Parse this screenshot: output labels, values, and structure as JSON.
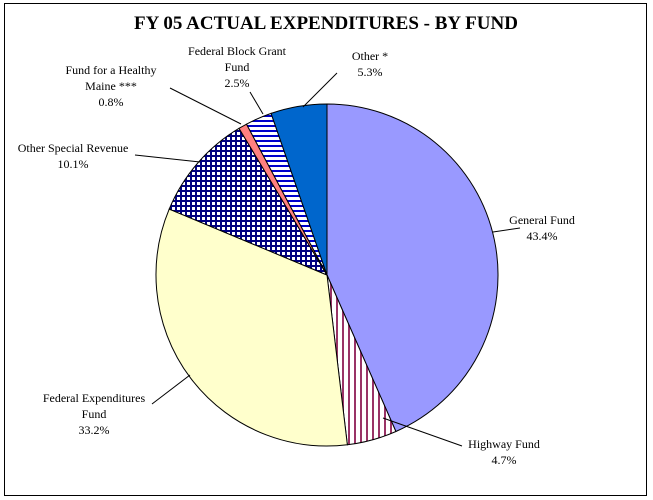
{
  "chart_data": {
    "type": "pie",
    "title": "FY 05 ACTUAL EXPENDITURES - BY FUND",
    "slices": [
      {
        "label_lines": [
          "General Fund"
        ],
        "value_label": "43.4%",
        "value": 43.4,
        "fill": "#9999ff",
        "pattern": "solid"
      },
      {
        "label_lines": [
          "Highway Fund"
        ],
        "value_label": "4.7%",
        "value": 4.7,
        "fill": "#993366",
        "pattern": "vertical-stripes"
      },
      {
        "label_lines": [
          "Federal Expenditures",
          "Fund"
        ],
        "value_label": "33.2%",
        "value": 33.2,
        "fill": "#ffffcc",
        "pattern": "solid"
      },
      {
        "label_lines": [
          "Other Special Revenue"
        ],
        "value_label": "10.1%",
        "value": 10.1,
        "fill": "#000080",
        "pattern": "grid"
      },
      {
        "label_lines": [
          "Fund for a Healthy",
          "Maine ***"
        ],
        "value_label": "0.8%",
        "value": 0.8,
        "fill": "#ff8080",
        "pattern": "solid"
      },
      {
        "label_lines": [
          "Federal Block Grant",
          "Fund"
        ],
        "value_label": "2.5%",
        "value": 2.5,
        "fill": "#0000cc",
        "pattern": "horizontal-stripes"
      },
      {
        "label_lines": [
          "Other *"
        ],
        "value_label": "5.3%",
        "value": 5.3,
        "fill": "#0066cc",
        "pattern": "solid"
      }
    ],
    "start": "top",
    "direction": "clockwise",
    "legend": "none"
  }
}
